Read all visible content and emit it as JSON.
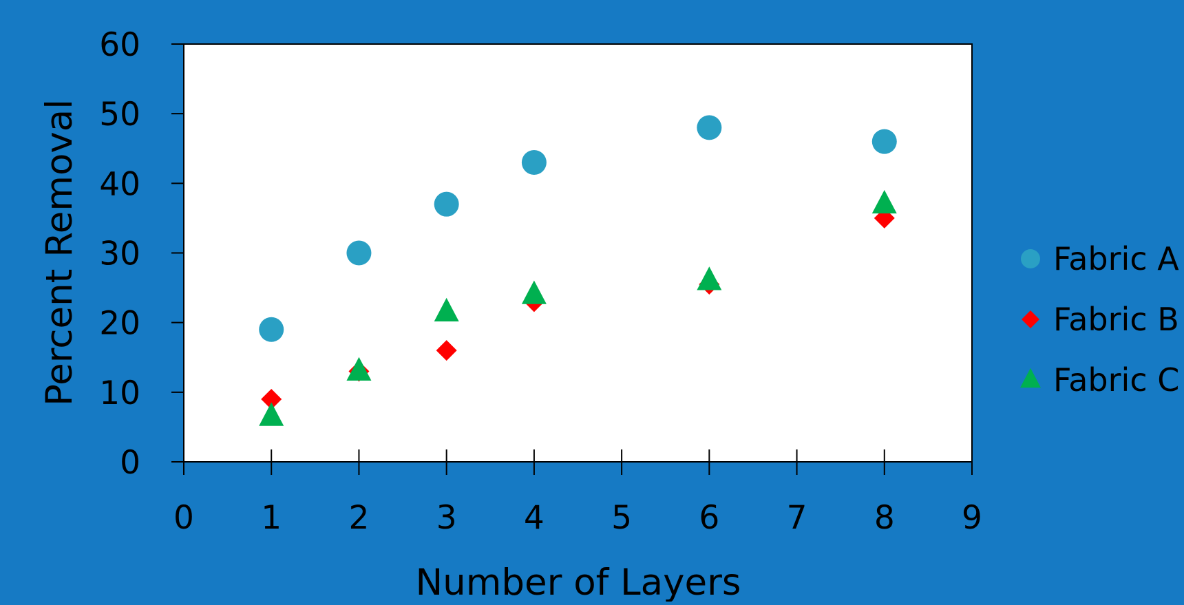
{
  "chart_data": {
    "type": "scatter",
    "title": "",
    "xlabel": "Number of Layers",
    "ylabel": "Percent Removal",
    "xlim": [
      0,
      9
    ],
    "ylim": [
      0,
      60
    ],
    "x_ticks": [
      0,
      1,
      2,
      3,
      4,
      5,
      6,
      7,
      8,
      9
    ],
    "y_ticks": [
      0,
      10,
      20,
      30,
      40,
      50,
      60
    ],
    "grid": false,
    "legend_position": "right",
    "plot_background": "#ffffff",
    "page_background": "#167ac4",
    "series": [
      {
        "name": "Fabric A",
        "marker": "circle",
        "color": "#2aa0c4",
        "points": [
          {
            "x": 1,
            "y": 19
          },
          {
            "x": 2,
            "y": 30
          },
          {
            "x": 3,
            "y": 37
          },
          {
            "x": 4,
            "y": 43
          },
          {
            "x": 6,
            "y": 48
          },
          {
            "x": 8,
            "y": 46
          }
        ]
      },
      {
        "name": "Fabric B",
        "marker": "diamond",
        "color": "#ff0000",
        "points": [
          {
            "x": 1,
            "y": 9
          },
          {
            "x": 2,
            "y": 13
          },
          {
            "x": 3,
            "y": 16
          },
          {
            "x": 4,
            "y": 23
          },
          {
            "x": 6,
            "y": 25.5
          },
          {
            "x": 8,
            "y": 35
          }
        ]
      },
      {
        "name": "Fabric C",
        "marker": "triangle",
        "color": "#00b050",
        "points": [
          {
            "x": 1,
            "y": 6.5
          },
          {
            "x": 2,
            "y": 13
          },
          {
            "x": 3,
            "y": 21.5
          },
          {
            "x": 4,
            "y": 24
          },
          {
            "x": 6,
            "y": 26
          },
          {
            "x": 8,
            "y": 37
          }
        ]
      }
    ]
  }
}
